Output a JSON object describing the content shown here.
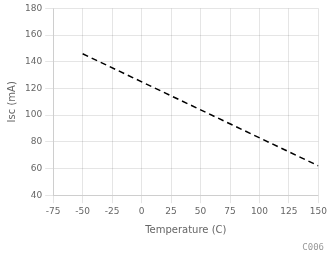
{
  "chart_data": {
    "type": "line",
    "x": [
      -50,
      150
    ],
    "values": [
      146,
      62
    ],
    "color": "#000000",
    "line_style": "dashed",
    "xlabel": "Temperature (C)",
    "ylabel": "Isc (mA)",
    "annotations": [
      "C006"
    ],
    "xlim": [
      -75,
      150
    ],
    "xticks": [
      -75,
      -50,
      -25,
      0,
      25,
      50,
      75,
      100,
      125,
      150
    ],
    "ylim": [
      40,
      180
    ],
    "yticks": [
      40,
      60,
      80,
      100,
      120,
      140,
      160,
      180
    ],
    "grid": true
  }
}
